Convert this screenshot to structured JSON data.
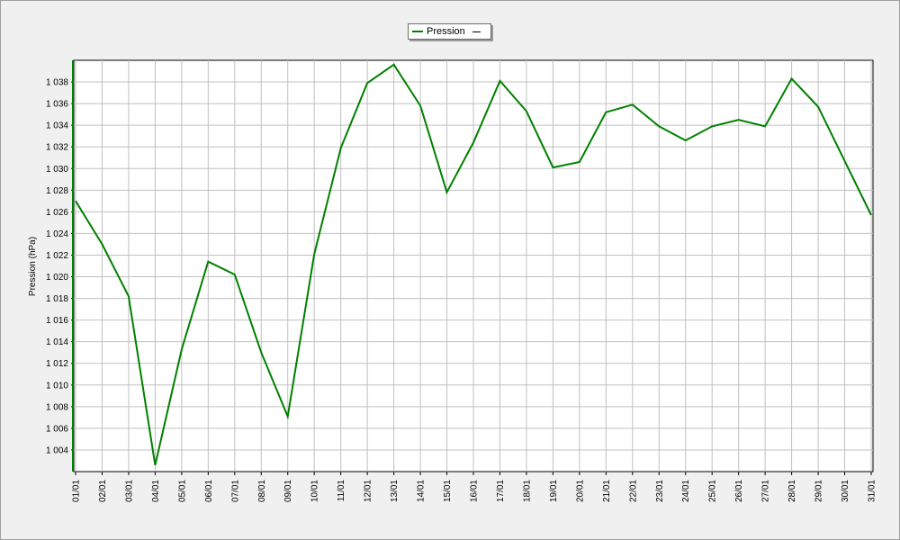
{
  "chart_data": {
    "type": "line",
    "title": "",
    "xlabel": "",
    "ylabel": "Pression (hPa)",
    "ylim": [
      1002,
      1040
    ],
    "yticks": [
      1004,
      1006,
      1008,
      1010,
      1012,
      1014,
      1016,
      1018,
      1020,
      1022,
      1024,
      1026,
      1028,
      1030,
      1032,
      1034,
      1036,
      1038
    ],
    "ytick_labels": [
      "1 004",
      "1 006",
      "1 008",
      "1 010",
      "1 012",
      "1 014",
      "1 016",
      "1 018",
      "1 020",
      "1 022",
      "1 024",
      "1 026",
      "1 028",
      "1 030",
      "1 032",
      "1 034",
      "1 036",
      "1 038"
    ],
    "categories": [
      "01/01",
      "02/01",
      "03/01",
      "04/01",
      "05/01",
      "06/01",
      "07/01",
      "08/01",
      "09/01",
      "10/01",
      "11/01",
      "12/01",
      "13/01",
      "14/01",
      "15/01",
      "16/01",
      "17/01",
      "18/01",
      "19/01",
      "20/01",
      "21/01",
      "22/01",
      "23/01",
      "24/01",
      "25/01",
      "26/01",
      "27/01",
      "28/01",
      "29/01",
      "30/01",
      "31/01"
    ],
    "series": [
      {
        "name": "Pression",
        "color": "#008000",
        "values": [
          1027.0,
          1023.0,
          1018.2,
          1002.6,
          1013.3,
          1021.4,
          1020.2,
          1013.0,
          1007.1,
          1022.1,
          1031.9,
          1037.9,
          1039.6,
          1035.8,
          1027.8,
          1032.4,
          1038.1,
          1035.3,
          1030.1,
          1030.6,
          1035.2,
          1035.9,
          1033.9,
          1032.6,
          1033.9,
          1034.5,
          1033.9,
          1038.3,
          1035.7,
          1030.7,
          1025.7
        ]
      }
    ],
    "grid": true,
    "legend_position": "top-center",
    "legend_label": "Pression"
  }
}
